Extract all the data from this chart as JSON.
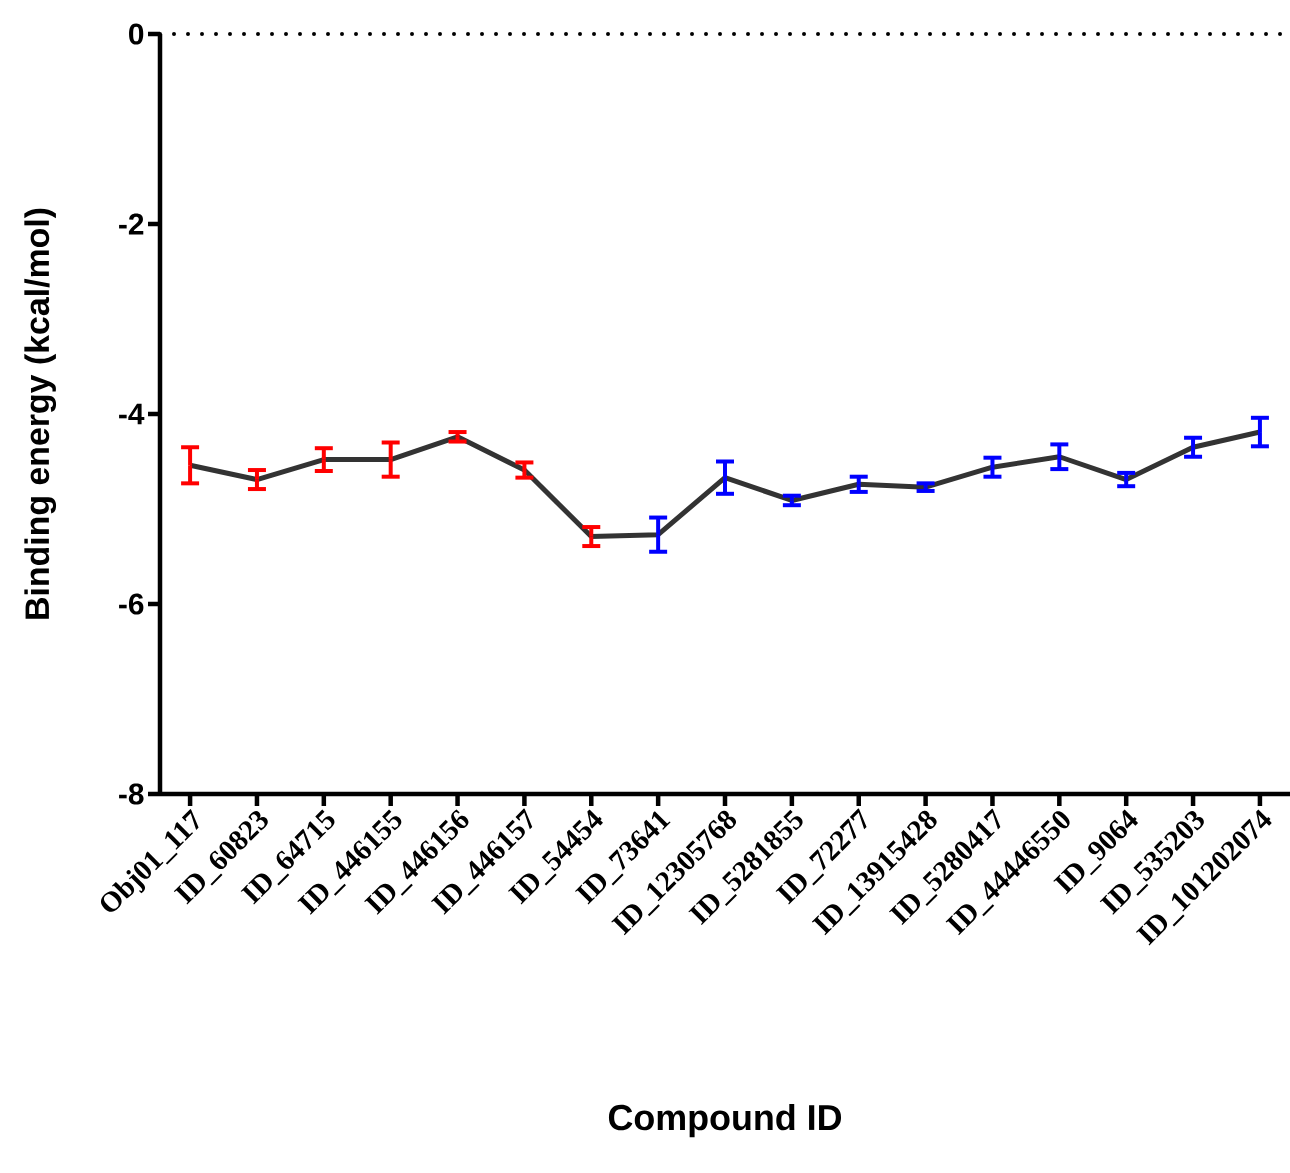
{
  "chart_data": {
    "type": "line",
    "xlabel": "Compound ID",
    "ylabel": "Binding energy (kcal/mol)",
    "categories": [
      "Obj01_117",
      "ID_60823",
      "ID_64715",
      "ID_446155",
      "ID_446156",
      "ID_446157",
      "ID_54454",
      "ID_73641",
      "ID_12305768",
      "ID_5281855",
      "ID_72277",
      "ID_13915428",
      "ID_5280417",
      "ID_44446550",
      "ID_9064",
      "ID_535203",
      "ID_101202074"
    ],
    "series": [
      {
        "color": "#333333",
        "values": [
          -4.54,
          -4.69,
          -4.48,
          -4.48,
          -4.24,
          -4.59,
          -5.29,
          -5.27,
          -4.67,
          -4.91,
          -4.74,
          -4.77,
          -4.56,
          -4.45,
          -4.69,
          -4.35,
          -4.19
        ],
        "errors": [
          0.19,
          0.1,
          0.12,
          0.18,
          0.05,
          0.08,
          0.1,
          0.18,
          0.17,
          0.05,
          0.08,
          0.04,
          0.1,
          0.13,
          0.07,
          0.1,
          0.15
        ],
        "colors": [
          "#ff0000",
          "#ff0000",
          "#ff0000",
          "#ff0000",
          "#ff0000",
          "#ff0000",
          "#ff0000",
          "#0000ff",
          "#0000ff",
          "#0000ff",
          "#0000ff",
          "#0000ff",
          "#0000ff",
          "#0000ff",
          "#0000ff",
          "#0000ff",
          "#0000ff"
        ]
      }
    ],
    "ylim": [
      -8,
      0
    ],
    "yticks": [
      0,
      -2,
      -4,
      -6,
      -8
    ],
    "ref_lines": [
      {
        "axis": "y",
        "value": 0,
        "line_style": "dotted",
        "color": "#000000"
      }
    ],
    "grid": false
  }
}
